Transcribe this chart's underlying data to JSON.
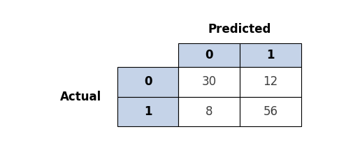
{
  "title": "Predicted",
  "y_label": "Actual",
  "col_headers": [
    "0",
    "1"
  ],
  "row_headers": [
    "0",
    "1"
  ],
  "matrix": [
    [
      30,
      12
    ],
    [
      8,
      56
    ]
  ],
  "header_bg": "#C5D3E8",
  "cell_bg_white": "#FFFFFF",
  "border_color": "#000000",
  "text_color_header": "#000000",
  "text_color_data": "#3F3F3F",
  "title_fontsize": 12,
  "label_fontsize": 12,
  "header_fontsize": 12,
  "data_fontsize": 12
}
